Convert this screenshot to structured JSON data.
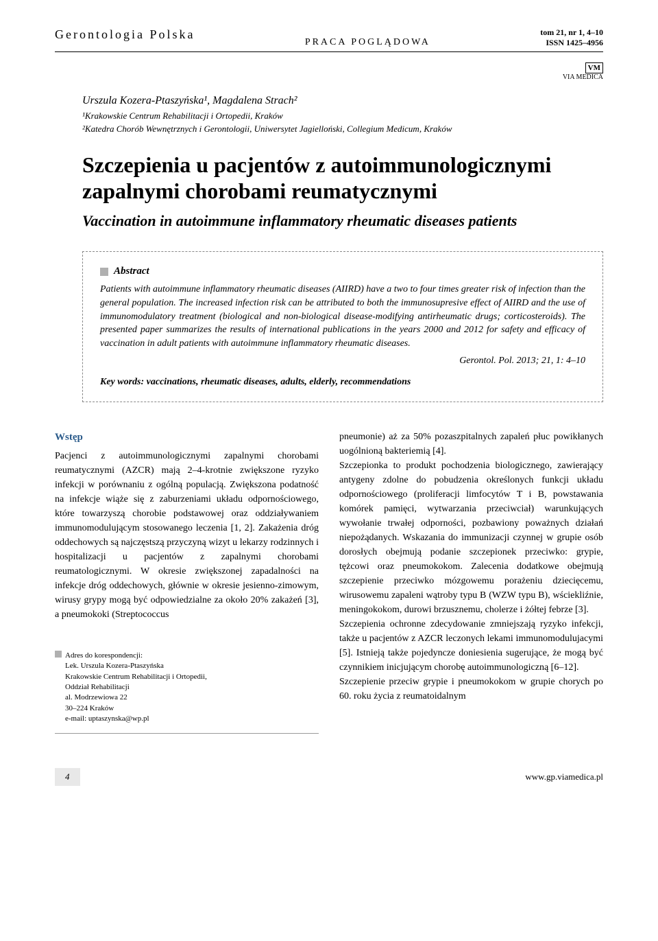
{
  "header": {
    "journal_name": "Gerontologia Polska",
    "article_type": "PRACA POGLĄDOWA",
    "issue_line1": "tom 21, nr 1, 4–10",
    "issue_line2": "ISSN 1425–4956",
    "logo_mark": "VM",
    "logo_text": "VIA MEDICA"
  },
  "authors": "Urszula Kozera-Ptaszyńska¹, Magdalena Strach²",
  "affiliations": [
    "¹Krakowskie Centrum Rehabilitacji i Ortopedii, Kraków",
    "²Katedra Chorób Wewnętrznych i Gerontologii, Uniwersytet Jagielloński, Collegium Medicum, Kraków"
  ],
  "title_pl": "Szczepienia u pacjentów z autoimmunologicznymi zapalnymi chorobami reumatycznymi",
  "title_en": "Vaccination in autoimmune inflammatory rheumatic diseases patients",
  "abstract": {
    "label": "Abstract",
    "text": "Patients with autoimmune inflammatory rheumatic diseases (AIIRD) have a two to four times greater risk of infection than the general population. The increased infection risk can be attributed to both the immunosupresive effect of AIIRD and the use of immunomodulatory treatment (biological and non-biological disease-modifying antirheumatic drugs; corticosteroids). The presented paper summarizes the results of international publications in the years 2000 and 2012 for safety and efficacy of vaccination in adult patients with autoimmune inflammatory rheumatic diseases.",
    "citation": "Gerontol. Pol. 2013; 21, 1: 4–10",
    "keywords": "Key words: vaccinations, rheumatic diseases, adults, elderly, recommendations"
  },
  "body": {
    "section_heading": "Wstęp",
    "col1_p1": "Pacjenci z autoimmunologicznymi zapalnymi chorobami reumatycznymi (AZCR) mają 2–4-krotnie zwiększone ryzyko infekcji w porównaniu z ogólną populacją. Zwiększona podatność na infekcje wiąże się z zaburzeniami układu odpornościowego, które towarzyszą chorobie podstawowej oraz oddziaływaniem immunomodulującym stosowanego leczenia [1, 2]. Zakażenia dróg oddechowych są najczęstszą przyczyną wizyt u lekarzy rodzinnych i hospitalizacji u pacjentów z zapalnymi chorobami reumatologicznymi. W okresie zwiększonej zapadalności na infekcje dróg oddechowych, głównie w okresie jesienno-zimowym, wirusy grypy mogą być odpowiedzialne za około 20% zakażeń [3], a pneumokoki (Streptococcus",
    "col2_p1": "pneumonie) aż za 50% pozaszpitalnych zapaleń płuc powikłanych uogólnioną bakteriemią [4].",
    "col2_p2": "Szczepionka to produkt pochodzenia biologicznego, zawierający antygeny zdolne do pobudzenia określonych funkcji układu odpornościowego (proliferacji limfocytów T i B, powstawania komórek pamięci, wytwarzania przeciwciał) warunkujących wywołanie trwałej odporności, pozbawiony poważnych działań niepożądanych. Wskazania do immunizacji czynnej w grupie osób dorosłych obejmują podanie szczepionek przeciwko: grypie, tężcowi oraz pneumokokom. Zalecenia dodatkowe obejmują szczepienie przeciwko mózgowemu porażeniu dziecięcemu, wirusowemu zapaleni wątroby typu B (WZW typu B), wściekliźnie, meningokokom, durowi brzusznemu, cholerze i żółtej febrze [3].",
    "col2_p3": "Szczepienia ochronne zdecydowanie zmniejszają ryzyko infekcji, także u pacjentów z AZCR leczonych lekami immunomodulujacymi [5]. Istnieją także pojedyncze doniesienia sugerujące, że mogą być czynnikiem inicjującym chorobę autoimmunologiczną [6–12].",
    "col2_p4": "Szczepienie przeciw grypie i pneumokokom w grupie chorych po 60. roku życia z reumatoidalnym"
  },
  "correspondence": {
    "heading": "Adres do korespondencji:",
    "name": "Lek. Urszula Kozera-Ptaszyńska",
    "inst": "Krakowskie Centrum Rehabilitacji i Ortopedii,",
    "dept": "Oddział Rehabilitacji",
    "street": "al. Modrzewiowa 22",
    "city": "30–224 Kraków",
    "email": "e-mail: uptaszynska@wp.pl"
  },
  "footer": {
    "page_number": "4",
    "url": "www.gp.viamedica.pl"
  },
  "style": {
    "colors": {
      "text": "#000000",
      "heading_blue": "#2a5a8a",
      "box_gray": "#b0b0b0",
      "footer_bg": "#e8e8e8",
      "dash_border": "#888888"
    },
    "fonts": {
      "body_size_pt": 14,
      "title_size_pt": 32,
      "subtitle_size_pt": 22
    }
  }
}
